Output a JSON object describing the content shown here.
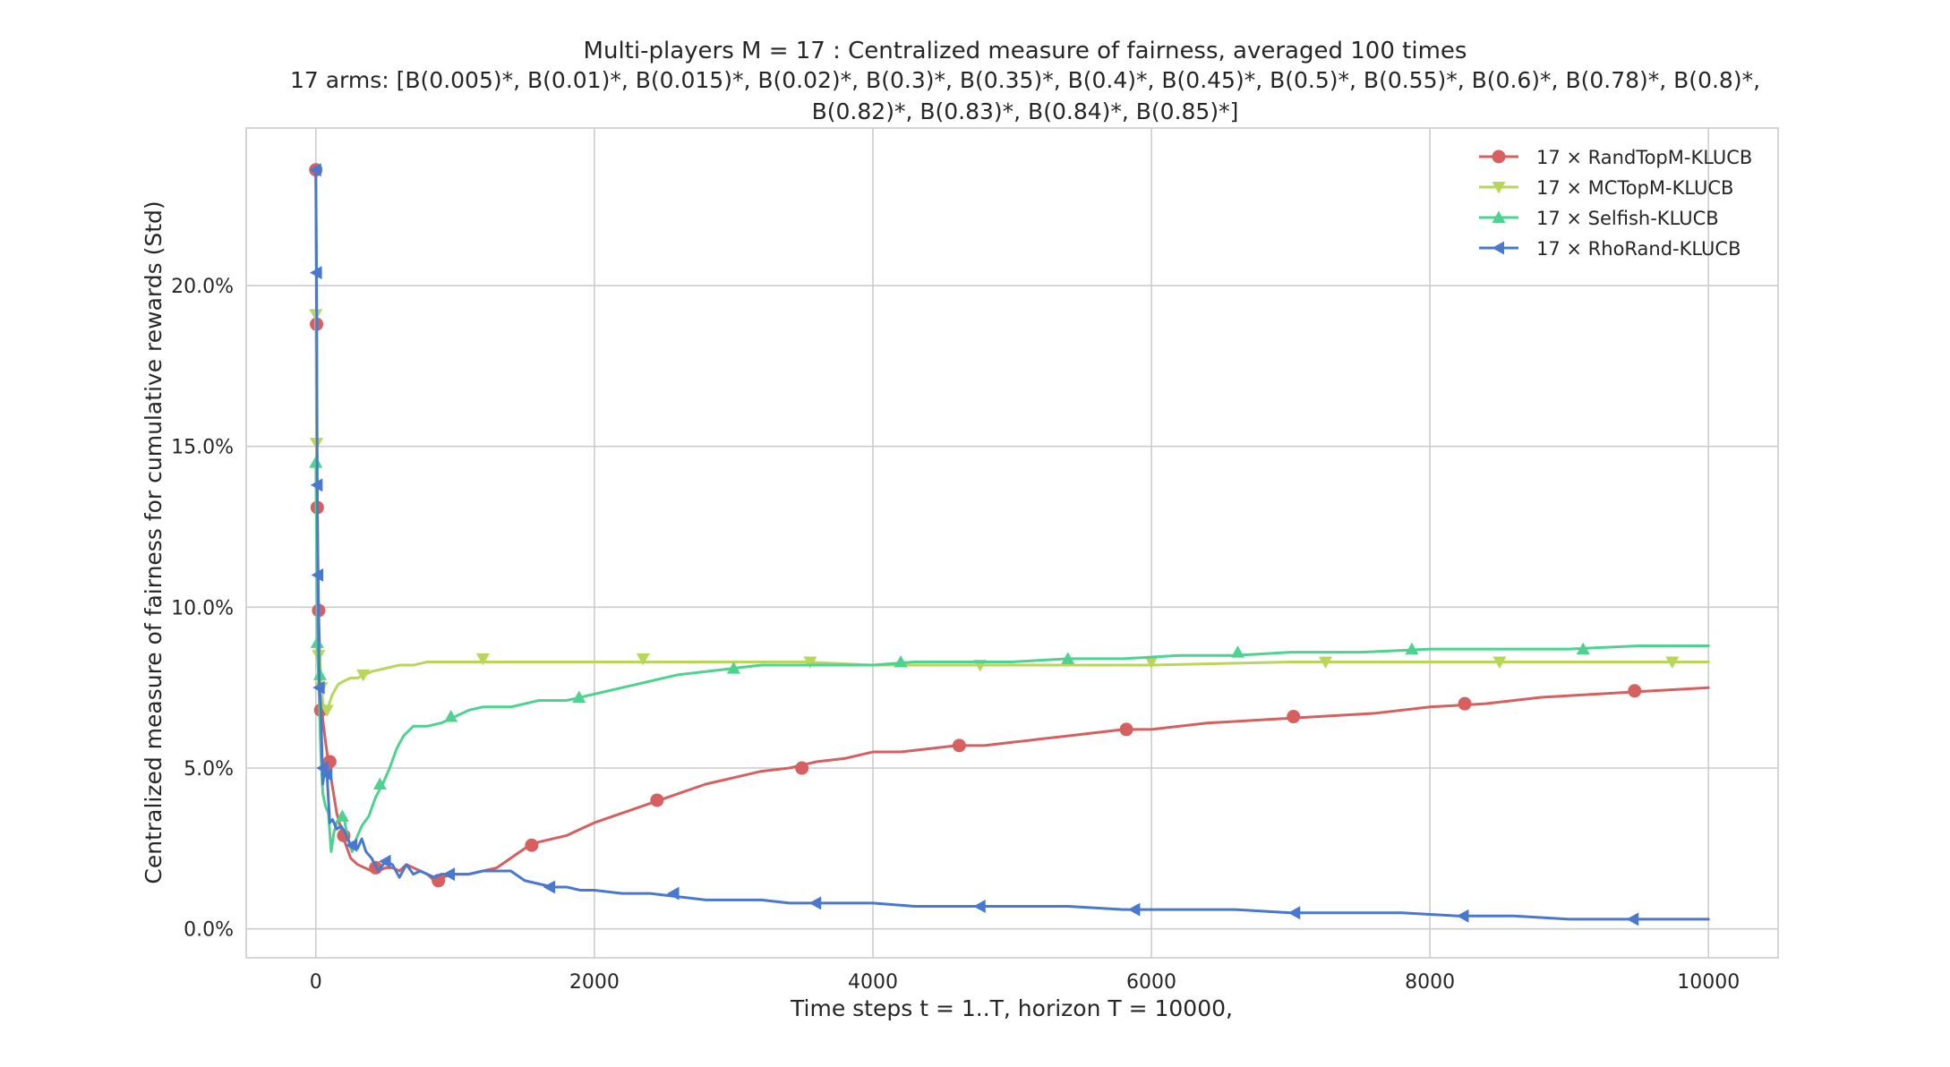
{
  "chart_data": {
    "type": "line",
    "title_line1": "Multi-players M = 17 : Centralized measure of fairness, averaged 100 times",
    "title_line2": "17 arms: [B(0.005)*, B(0.01)*, B(0.015)*, B(0.02)*, B(0.3)*, B(0.35)*, B(0.4)*, B(0.45)*, B(0.5)*, B(0.55)*, B(0.6)*, B(0.78)*, B(0.8)*,",
    "title_line3": "B(0.82)*, B(0.83)*, B(0.84)*, B(0.85)*]",
    "xlabel": "Time steps t = 1..T, horizon T = 10000,",
    "ylabel": "Centralized measure of fairness for cumulative rewards (Std)",
    "xlim": [
      -500,
      10500
    ],
    "ylim": [
      -0.009,
      0.249
    ],
    "xticks": [
      0,
      2000,
      4000,
      6000,
      8000,
      10000
    ],
    "xtick_labels": [
      "0",
      "2000",
      "4000",
      "6000",
      "8000",
      "10000"
    ],
    "yticks": [
      0.0,
      0.05,
      0.1,
      0.15,
      0.2
    ],
    "ytick_labels": [
      "0.0%",
      "5.0%",
      "10.0%",
      "15.0%",
      "20.0%"
    ],
    "grid": true,
    "legend_position": "top-right",
    "series": [
      {
        "name": "17 × RandTopM-KLUCB",
        "color": "#d65f5f",
        "marker": "circle",
        "x": [
          0,
          5,
          10,
          20,
          35,
          50,
          70,
          90,
          120,
          150,
          200,
          250,
          300,
          350,
          400,
          450,
          500,
          550,
          600,
          650,
          700,
          750,
          800,
          850,
          900,
          1000,
          1100,
          1200,
          1300,
          1400,
          1500,
          1600,
          1700,
          1800,
          1900,
          2000,
          2200,
          2400,
          2600,
          2800,
          3000,
          3200,
          3400,
          3600,
          3800,
          4000,
          4200,
          4400,
          4600,
          4800,
          5000,
          5200,
          5400,
          5600,
          5800,
          6000,
          6400,
          6800,
          7200,
          7600,
          8000,
          8400,
          8800,
          9200,
          9600,
          10000
        ],
        "y": [
          0.236,
          0.188,
          0.131,
          0.099,
          0.075,
          0.065,
          0.058,
          0.052,
          0.044,
          0.036,
          0.028,
          0.022,
          0.02,
          0.019,
          0.018,
          0.018,
          0.019,
          0.019,
          0.018,
          0.02,
          0.019,
          0.018,
          0.017,
          0.015,
          0.016,
          0.017,
          0.017,
          0.018,
          0.019,
          0.022,
          0.025,
          0.027,
          0.028,
          0.029,
          0.031,
          0.033,
          0.036,
          0.039,
          0.042,
          0.045,
          0.047,
          0.049,
          0.05,
          0.052,
          0.053,
          0.055,
          0.055,
          0.056,
          0.057,
          0.057,
          0.058,
          0.059,
          0.06,
          0.061,
          0.062,
          0.062,
          0.064,
          0.065,
          0.066,
          0.067,
          0.069,
          0.07,
          0.072,
          0.073,
          0.074,
          0.075
        ],
        "marker_x": [
          0,
          5,
          10,
          20,
          35,
          100,
          200,
          430,
          880,
          1550,
          2450,
          3490,
          4620,
          5820,
          7020,
          8250,
          9470
        ],
        "marker_y": [
          0.236,
          0.188,
          0.131,
          0.099,
          0.068,
          0.052,
          0.029,
          0.019,
          0.015,
          0.026,
          0.04,
          0.05,
          0.057,
          0.062,
          0.066,
          0.07,
          0.074
        ]
      },
      {
        "name": "17 × MCTopM-KLUCB",
        "color": "#b7d65a",
        "marker": "triangle_down",
        "x": [
          0,
          5,
          10,
          20,
          35,
          50,
          80,
          120,
          160,
          200,
          250,
          300,
          350,
          400,
          500,
          600,
          700,
          800,
          1000,
          1200,
          1500,
          2000,
          2500,
          3000,
          3500,
          4000,
          4500,
          5000,
          5500,
          6000,
          7000,
          8000,
          9000,
          10000
        ],
        "y": [
          0.191,
          0.151,
          0.12,
          0.09,
          0.08,
          0.07,
          0.068,
          0.073,
          0.076,
          0.077,
          0.078,
          0.078,
          0.079,
          0.08,
          0.081,
          0.082,
          0.082,
          0.083,
          0.083,
          0.083,
          0.083,
          0.083,
          0.083,
          0.083,
          0.083,
          0.082,
          0.082,
          0.082,
          0.082,
          0.082,
          0.083,
          0.083,
          0.083,
          0.083
        ],
        "marker_x": [
          0,
          5,
          20,
          40,
          80,
          340,
          1200,
          2350,
          3550,
          4770,
          6000,
          7250,
          8500,
          9740
        ],
        "marker_y": [
          0.191,
          0.151,
          0.085,
          0.075,
          0.068,
          0.079,
          0.084,
          0.084,
          0.083,
          0.082,
          0.083,
          0.083,
          0.083,
          0.083
        ]
      },
      {
        "name": "17 × Selfish-KLUCB",
        "color": "#4dd28f",
        "marker": "triangle_up",
        "x": [
          0,
          5,
          10,
          20,
          35,
          50,
          70,
          90,
          110,
          130,
          150,
          170,
          200,
          230,
          260,
          290,
          330,
          380,
          430,
          480,
          530,
          580,
          630,
          700,
          800,
          900,
          1000,
          1100,
          1200,
          1300,
          1400,
          1500,
          1600,
          1700,
          1800,
          1900,
          2000,
          2200,
          2400,
          2600,
          2800,
          3000,
          3200,
          3400,
          3600,
          3800,
          4000,
          4300,
          4600,
          5000,
          5400,
          5800,
          6200,
          6600,
          7000,
          7500,
          8000,
          8500,
          9000,
          9500,
          10000
        ],
        "y": [
          0.145,
          0.12,
          0.089,
          0.078,
          0.055,
          0.042,
          0.038,
          0.036,
          0.024,
          0.03,
          0.033,
          0.034,
          0.035,
          0.028,
          0.024,
          0.028,
          0.032,
          0.035,
          0.041,
          0.045,
          0.05,
          0.056,
          0.06,
          0.063,
          0.063,
          0.064,
          0.066,
          0.068,
          0.069,
          0.069,
          0.069,
          0.07,
          0.071,
          0.071,
          0.071,
          0.072,
          0.073,
          0.075,
          0.077,
          0.079,
          0.08,
          0.081,
          0.082,
          0.082,
          0.082,
          0.082,
          0.082,
          0.083,
          0.083,
          0.083,
          0.084,
          0.084,
          0.085,
          0.085,
          0.086,
          0.086,
          0.087,
          0.087,
          0.087,
          0.088,
          0.088
        ],
        "marker_x": [
          0,
          10,
          30,
          190,
          460,
          970,
          1890,
          3000,
          4200,
          5400,
          6620,
          7870,
          9100
        ],
        "marker_y": [
          0.145,
          0.089,
          0.079,
          0.035,
          0.045,
          0.066,
          0.072,
          0.081,
          0.083,
          0.084,
          0.086,
          0.087,
          0.087
        ]
      },
      {
        "name": "17 × RhoRand-KLUCB",
        "color": "#4878cf",
        "marker": "triangle_left",
        "x": [
          0,
          5,
          10,
          15,
          25,
          35,
          50,
          65,
          80,
          100,
          120,
          150,
          180,
          210,
          240,
          270,
          300,
          330,
          360,
          400,
          450,
          500,
          550,
          600,
          650,
          700,
          750,
          800,
          850,
          900,
          1000,
          1100,
          1200,
          1300,
          1400,
          1500,
          1600,
          1700,
          1800,
          1900,
          2000,
          2200,
          2400,
          2600,
          2800,
          3000,
          3200,
          3400,
          3600,
          3800,
          4000,
          4300,
          4600,
          5000,
          5400,
          5800,
          6200,
          6600,
          7000,
          7400,
          7800,
          8200,
          8600,
          9000,
          9400,
          9800,
          10000
        ],
        "y": [
          0.236,
          0.204,
          0.138,
          0.11,
          0.075,
          0.07,
          0.045,
          0.05,
          0.048,
          0.033,
          0.034,
          0.031,
          0.032,
          0.03,
          0.027,
          0.025,
          0.025,
          0.028,
          0.024,
          0.022,
          0.018,
          0.021,
          0.02,
          0.016,
          0.02,
          0.017,
          0.018,
          0.017,
          0.016,
          0.017,
          0.017,
          0.017,
          0.018,
          0.018,
          0.018,
          0.015,
          0.014,
          0.013,
          0.013,
          0.012,
          0.012,
          0.011,
          0.011,
          0.01,
          0.009,
          0.009,
          0.009,
          0.008,
          0.008,
          0.008,
          0.008,
          0.007,
          0.007,
          0.007,
          0.007,
          0.006,
          0.006,
          0.006,
          0.005,
          0.005,
          0.005,
          0.004,
          0.004,
          0.003,
          0.003,
          0.003,
          0.003
        ],
        "marker_x": [
          0,
          5,
          10,
          15,
          25,
          50,
          80,
          260,
          500,
          960,
          1680,
          2570,
          3590,
          4770,
          5880,
          7030,
          8240,
          9460
        ],
        "marker_y": [
          0.236,
          0.204,
          0.138,
          0.11,
          0.075,
          0.05,
          0.048,
          0.026,
          0.021,
          0.017,
          0.013,
          0.011,
          0.008,
          0.007,
          0.006,
          0.005,
          0.004,
          0.003
        ]
      }
    ]
  }
}
